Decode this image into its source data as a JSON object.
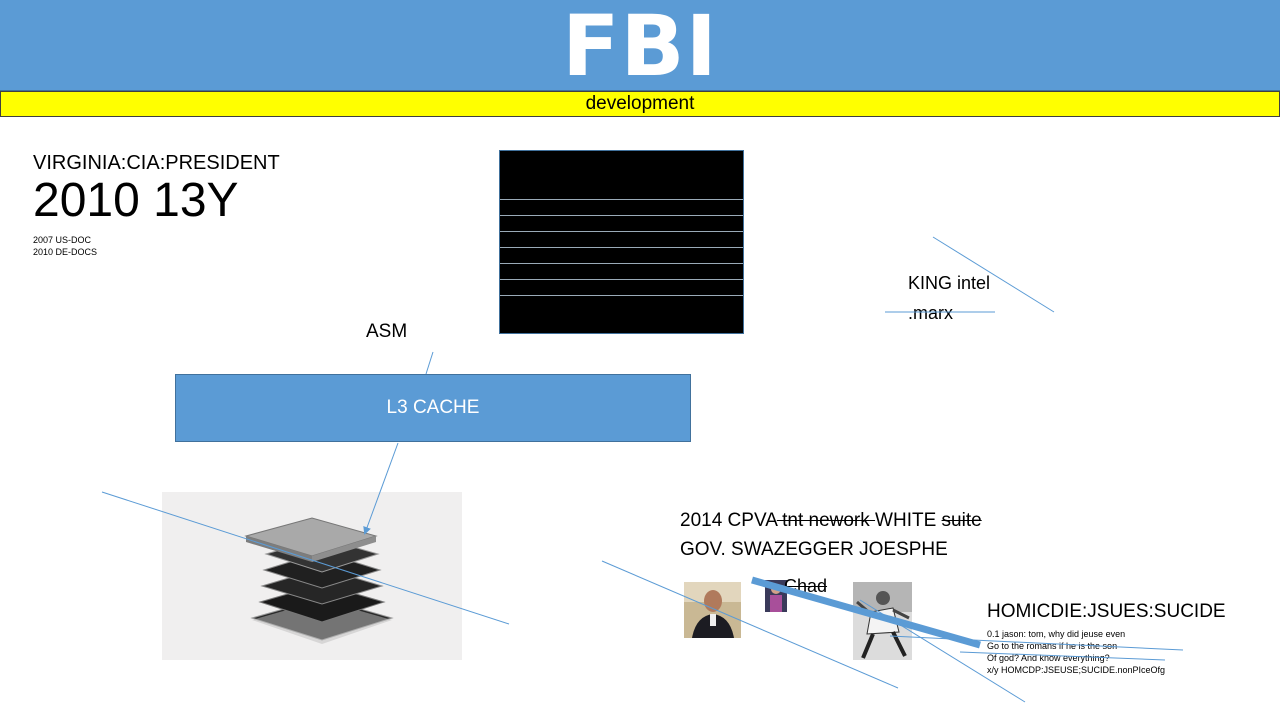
{
  "header": {
    "title": "FBI",
    "subtitle": "development"
  },
  "left_info": {
    "location": "VIRGINIA:CIA:PRESIDENT",
    "year": "2010 13Y",
    "docs": [
      "2007 US-DOC",
      "2010 DE-DOCS"
    ]
  },
  "king": {
    "line1": "KING  intel",
    "line2": ".marx"
  },
  "asm_label": "ASM",
  "cache_label": "L3 CACHE",
  "cpva": {
    "year": "2014 CPVA",
    "strike1": " tnt nework ",
    "white": "WHITE ",
    "strike2": "suite",
    "line2": "GOV. SWAZEGGER JOESPHE"
  },
  "chad_label": "Chad",
  "homicide": {
    "title": "HOMICDIE:JSUES:SUCIDE",
    "lines": [
      " 0.1 jason: tom, why did jeuse even",
      "Go to the romans if he is the son",
      "Of god? And know everything?",
      "x/y HOMCDP:JSEUSE;SUCIDE.nonPIceOfg"
    ]
  },
  "colors": {
    "header_blue": "#5b9bd5",
    "highlight_yellow": "#ffff00",
    "line_blue": "#5b9bd5"
  },
  "icons": [
    "cpu-package-exploded-icon",
    "portrait-photo",
    "small-photo",
    "dancer-photo"
  ]
}
